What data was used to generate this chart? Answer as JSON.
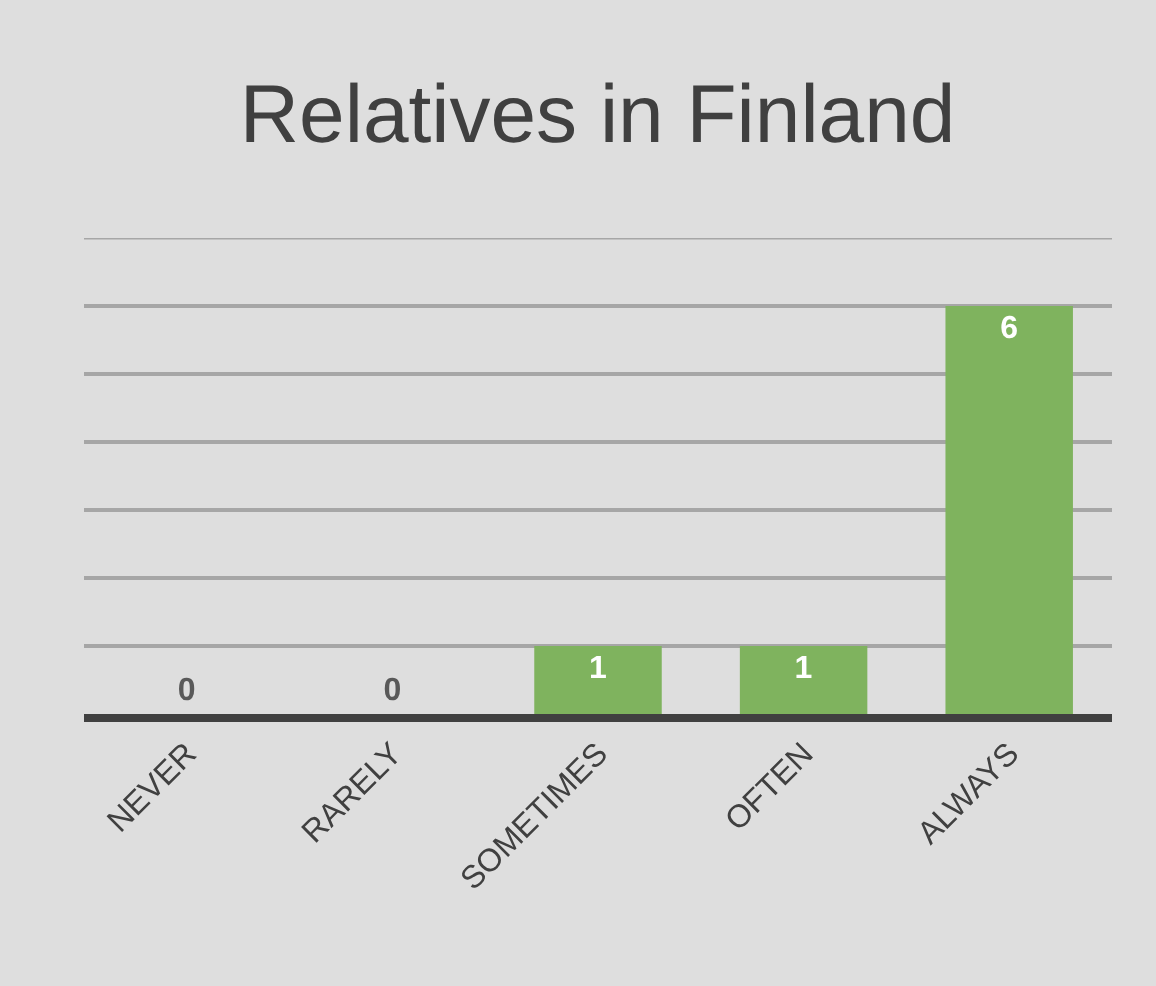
{
  "chart_data": {
    "type": "bar",
    "title": "Relatives in Finland",
    "categories": [
      "NEVER",
      "RARELY",
      "SOMETIMES",
      "OFTEN",
      "ALWAYS"
    ],
    "values": [
      0,
      0,
      1,
      1,
      6
    ],
    "color": "#7fb35e",
    "ylim": [
      0,
      7
    ],
    "yticks": [
      {
        "value": 1,
        "label": null
      },
      {
        "value": 2,
        "label": null
      },
      {
        "value": 3,
        "label": null
      },
      {
        "value": 4,
        "label": null
      },
      {
        "value": 5,
        "label": null
      },
      {
        "value": 6,
        "label": null
      },
      {
        "value": 7,
        "label": null
      }
    ],
    "grid": "y",
    "data_labels": true,
    "tick_labels": "x"
  }
}
